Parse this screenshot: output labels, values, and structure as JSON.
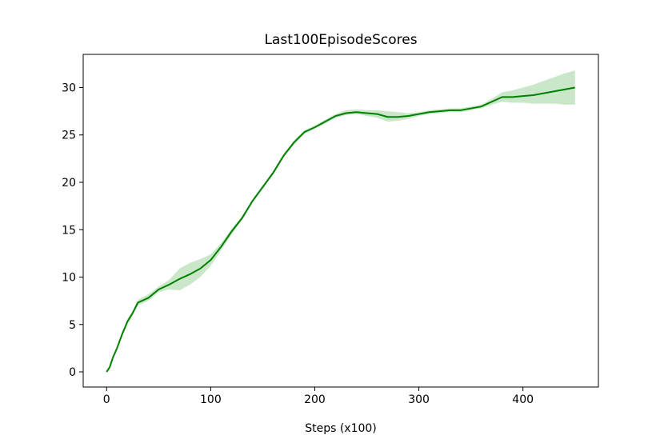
{
  "chart_data": {
    "type": "line",
    "title": "Last100EpisodeScores",
    "xlabel": "Steps (x100)",
    "x": [
      0,
      3,
      6,
      10,
      15,
      20,
      25,
      30,
      40,
      50,
      60,
      70,
      80,
      90,
      100,
      110,
      120,
      130,
      140,
      150,
      160,
      170,
      180,
      190,
      200,
      210,
      220,
      230,
      240,
      250,
      260,
      270,
      280,
      290,
      300,
      310,
      320,
      330,
      340,
      350,
      360,
      370,
      380,
      390,
      400,
      410,
      420,
      430,
      440,
      450
    ],
    "values": [
      0,
      0.5,
      1.5,
      2.5,
      4,
      5.3,
      6.2,
      7.3,
      7.8,
      8.7,
      9.2,
      9.8,
      10.3,
      10.9,
      11.8,
      13.2,
      14.8,
      16.2,
      18,
      19.5,
      21,
      22.8,
      24.2,
      25.3,
      25.8,
      26.4,
      27,
      27.3,
      27.4,
      27.3,
      27.2,
      26.9,
      26.9,
      27,
      27.2,
      27.4,
      27.5,
      27.6,
      27.6,
      27.8,
      28,
      28.5,
      29,
      29,
      29.1,
      29.2,
      29.4,
      29.6,
      29.8,
      30
    ],
    "lower": [
      0,
      0.4,
      1.3,
      2.3,
      3.8,
      5,
      6,
      7,
      7.5,
      8.4,
      8.7,
      8.6,
      9.2,
      10,
      11.2,
      12.8,
      14.5,
      16,
      17.8,
      19.3,
      20.8,
      22.6,
      24,
      25.1,
      25.7,
      26.2,
      26.8,
      27.1,
      27.2,
      27,
      26.8,
      26.4,
      26.5,
      26.7,
      27,
      27.2,
      27.3,
      27.4,
      27.4,
      27.6,
      27.8,
      28.2,
      28.5,
      28.4,
      28.4,
      28.3,
      28.3,
      28.3,
      28.2,
      28.2
    ],
    "upper": [
      0,
      0.6,
      1.7,
      2.7,
      4.2,
      5.6,
      6.4,
      7.6,
      8.2,
      9,
      9.7,
      10.9,
      11.5,
      11.9,
      12.4,
      13.6,
      15.1,
      16.4,
      18.2,
      19.7,
      21.2,
      23,
      24.4,
      25.5,
      26,
      26.6,
      27.2,
      27.6,
      27.7,
      27.6,
      27.6,
      27.5,
      27.4,
      27.3,
      27.4,
      27.6,
      27.7,
      27.8,
      27.8,
      28,
      28.2,
      28.8,
      29.5,
      29.7,
      30,
      30.3,
      30.7,
      31.1,
      31.5,
      31.8
    ],
    "color": "#008000",
    "band_color": "#2ca02c",
    "xlim": [
      -22.5,
      472.5
    ],
    "xticks": [
      0,
      100,
      200,
      300,
      400
    ],
    "ylim": [
      -1.6,
      33.5
    ],
    "yticks": [
      0,
      5,
      10,
      15,
      20,
      25,
      30
    ],
    "grid": false
  }
}
